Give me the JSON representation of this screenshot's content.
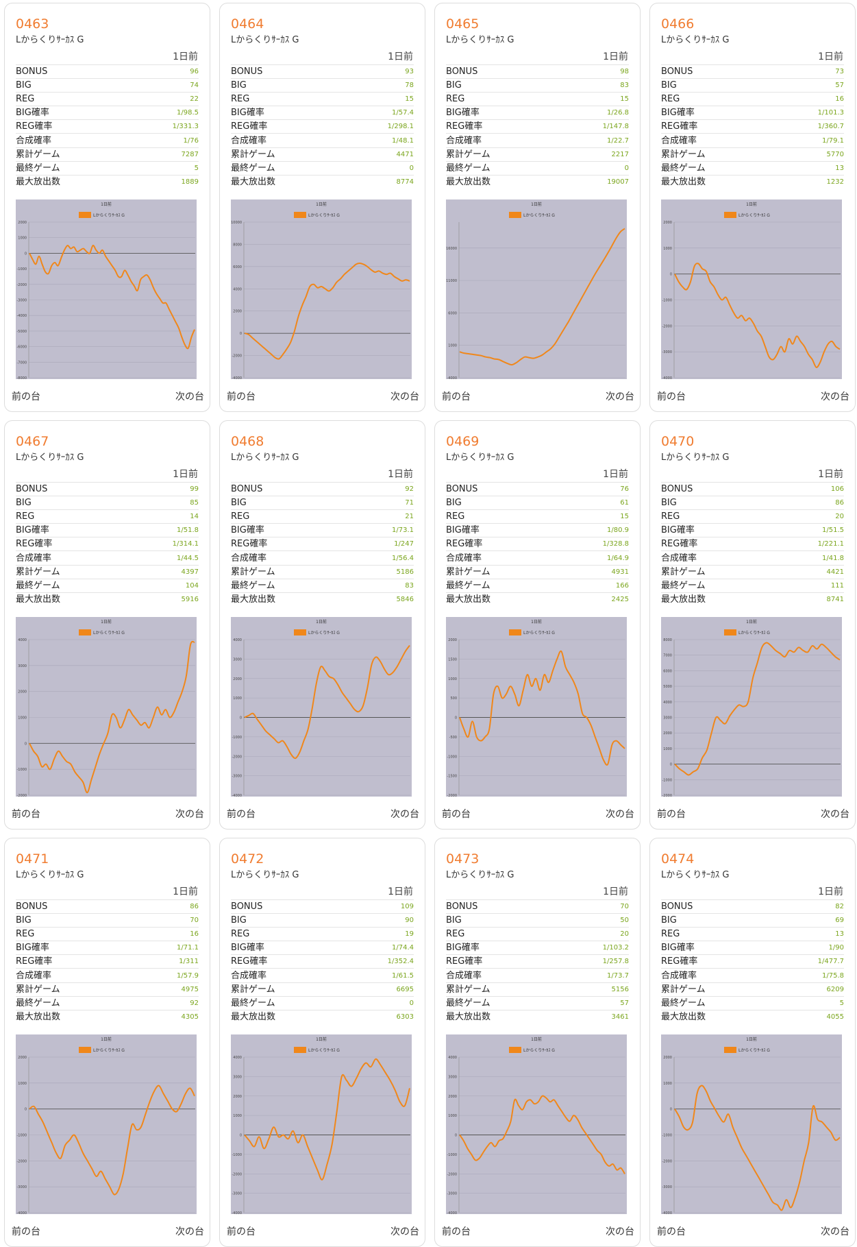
{
  "colors": {
    "accent": "#f07c30",
    "value": "#7aa51c",
    "chart_bg": "#c0bece",
    "line": "#f0871a"
  },
  "common": {
    "machine": "Lからくりｻｰｶｽ G",
    "day": "1日前",
    "prev": "前の台",
    "next": "次の台",
    "labels": [
      "BONUS",
      "BIG",
      "REG",
      "BIG確率",
      "REG確率",
      "合成確率",
      "累計ゲーム",
      "最終ゲーム",
      "最大放出数"
    ]
  },
  "cards": [
    {
      "number": "0463",
      "stats": [
        "96",
        "74",
        "22",
        "1/98.5",
        "1/331.3",
        "1/76",
        "7287",
        "5",
        "1889"
      ]
    },
    {
      "number": "0464",
      "stats": [
        "93",
        "78",
        "15",
        "1/57.4",
        "1/298.1",
        "1/48.1",
        "4471",
        "0",
        "8774"
      ]
    },
    {
      "number": "0465",
      "stats": [
        "98",
        "83",
        "15",
        "1/26.8",
        "1/147.8",
        "1/22.7",
        "2217",
        "0",
        "19007"
      ]
    },
    {
      "number": "0466",
      "stats": [
        "73",
        "57",
        "16",
        "1/101.3",
        "1/360.7",
        "1/79.1",
        "5770",
        "13",
        "1232"
      ]
    },
    {
      "number": "0467",
      "stats": [
        "99",
        "85",
        "14",
        "1/51.8",
        "1/314.1",
        "1/44.5",
        "4397",
        "104",
        "5916"
      ]
    },
    {
      "number": "0468",
      "stats": [
        "92",
        "71",
        "21",
        "1/73.1",
        "1/247",
        "1/56.4",
        "5186",
        "83",
        "5846"
      ]
    },
    {
      "number": "0469",
      "stats": [
        "76",
        "61",
        "15",
        "1/80.9",
        "1/328.8",
        "1/64.9",
        "4931",
        "166",
        "2425"
      ]
    },
    {
      "number": "0470",
      "stats": [
        "106",
        "86",
        "20",
        "1/51.5",
        "1/221.1",
        "1/41.8",
        "4421",
        "111",
        "8741"
      ]
    },
    {
      "number": "0471",
      "stats": [
        "86",
        "70",
        "16",
        "1/71.1",
        "1/311",
        "1/57.9",
        "4975",
        "92",
        "4305"
      ]
    },
    {
      "number": "0472",
      "stats": [
        "109",
        "90",
        "19",
        "1/74.4",
        "1/352.4",
        "1/61.5",
        "6695",
        "0",
        "6303"
      ]
    },
    {
      "number": "0473",
      "stats": [
        "70",
        "50",
        "20",
        "1/103.2",
        "1/257.8",
        "1/73.7",
        "5156",
        "57",
        "3461"
      ]
    },
    {
      "number": "0474",
      "stats": [
        "82",
        "69",
        "13",
        "1/90",
        "1/477.7",
        "1/75.8",
        "6209",
        "5",
        "4055"
      ]
    }
  ],
  "chart_data": [
    {
      "type": "line",
      "title": "1日前",
      "series_name": "Lからくりｻｰｶｽ G",
      "ylim": [
        -8000,
        2000
      ],
      "ytick_step": 1000,
      "y": [
        0,
        -400,
        -700,
        -200,
        -700,
        -1200,
        -1300,
        -800,
        -600,
        -800,
        -300,
        200,
        500,
        300,
        400,
        100,
        200,
        300,
        100,
        0,
        500,
        200,
        0,
        200,
        -200,
        -500,
        -800,
        -1100,
        -1500,
        -1500,
        -1100,
        -1400,
        -1800,
        -2100,
        -2400,
        -1700,
        -1500,
        -1400,
        -1700,
        -2200,
        -2600,
        -2900,
        -3200,
        -3200,
        -3600,
        -4000,
        -4400,
        -4800,
        -5400,
        -5900,
        -6100,
        -5400,
        -4900
      ]
    },
    {
      "type": "line",
      "title": "1日前",
      "series_name": "Lからくりｻｰｶｽ G",
      "ylim": [
        -4000,
        10000
      ],
      "ytick_step": 2000,
      "y": [
        0,
        -100,
        -400,
        -700,
        -1000,
        -1300,
        -1600,
        -1900,
        -2200,
        -2300,
        -1900,
        -1400,
        -800,
        200,
        1500,
        2500,
        3300,
        4200,
        4400,
        4100,
        4200,
        4000,
        3800,
        4100,
        4600,
        4900,
        5300,
        5600,
        5900,
        6200,
        6300,
        6200,
        6000,
        5700,
        5500,
        5600,
        5400,
        5300,
        5400,
        5100,
        4900,
        4700,
        4800,
        4700
      ]
    },
    {
      "type": "line",
      "title": "1日前",
      "series_name": "Lからくりｻｰｶｽ G",
      "ylim": [
        -4000,
        20000
      ],
      "ytick_step": 5000,
      "y": [
        0,
        -200,
        -300,
        -400,
        -500,
        -600,
        -800,
        -900,
        -1100,
        -1200,
        -1500,
        -1800,
        -2000,
        -1700,
        -1200,
        -800,
        -900,
        -1000,
        -800,
        -500,
        0,
        500,
        1300,
        2400,
        3500,
        4600,
        5800,
        7000,
        8200,
        9400,
        10600,
        11800,
        12900,
        14000,
        15100,
        16300,
        17500,
        18500,
        19000
      ]
    },
    {
      "type": "line",
      "title": "1日前",
      "series_name": "Lからくりｻｰｶｽ G",
      "ylim": [
        -4000,
        2000
      ],
      "ytick_step": 1000,
      "y": [
        0,
        -300,
        -500,
        -600,
        -300,
        300,
        400,
        200,
        100,
        -300,
        -500,
        -800,
        -1000,
        -900,
        -1200,
        -1500,
        -1700,
        -1600,
        -1800,
        -1700,
        -1900,
        -2200,
        -2400,
        -2800,
        -3200,
        -3300,
        -3100,
        -2800,
        -3000,
        -2500,
        -2700,
        -2400,
        -2600,
        -2800,
        -3100,
        -3300,
        -3600,
        -3400,
        -3000,
        -2700,
        -2600,
        -2800,
        -2900
      ]
    },
    {
      "type": "line",
      "title": "1日前",
      "series_name": "Lからくりｻｰｶｽ G",
      "ylim": [
        -2000,
        4000
      ],
      "ytick_step": 1000,
      "y": [
        0,
        -300,
        -500,
        -900,
        -800,
        -1000,
        -600,
        -300,
        -500,
        -700,
        -800,
        -1100,
        -1300,
        -1500,
        -1900,
        -1400,
        -900,
        -400,
        0,
        400,
        1100,
        1000,
        600,
        900,
        1300,
        1100,
        900,
        700,
        800,
        600,
        1000,
        1400,
        1100,
        1300,
        1000,
        1200,
        1600,
        2000,
        2600,
        3800,
        3900
      ]
    },
    {
      "type": "line",
      "title": "1日前",
      "series_name": "Lからくりｻｰｶｽ G",
      "ylim": [
        -4000,
        4000
      ],
      "ytick_step": 1000,
      "y": [
        0,
        100,
        200,
        -100,
        -400,
        -700,
        -900,
        -1100,
        -1300,
        -1200,
        -1500,
        -1900,
        -2100,
        -1800,
        -1200,
        -600,
        500,
        1800,
        2600,
        2400,
        2100,
        2000,
        1700,
        1300,
        1000,
        700,
        400,
        300,
        600,
        1500,
        2700,
        3100,
        2900,
        2500,
        2200,
        2300,
        2600,
        3000,
        3400,
        3700
      ]
    },
    {
      "type": "line",
      "title": "1日前",
      "series_name": "Lからくりｻｰｶｽ G",
      "ylim": [
        -2000,
        2000
      ],
      "ytick_step": 500,
      "y": [
        0,
        -300,
        -500,
        -100,
        -500,
        -600,
        -500,
        -300,
        600,
        800,
        500,
        600,
        800,
        600,
        300,
        700,
        1100,
        800,
        1000,
        700,
        1100,
        900,
        1200,
        1500,
        1700,
        1300,
        1100,
        900,
        600,
        100,
        0,
        -200,
        -500,
        -800,
        -1100,
        -1200,
        -700,
        -600,
        -700,
        -800
      ]
    },
    {
      "type": "line",
      "title": "1日前",
      "series_name": "Lからくりｻｰｶｽ G",
      "ylim": [
        -2000,
        8000
      ],
      "ytick_step": 1000,
      "y": [
        0,
        -300,
        -500,
        -700,
        -500,
        -300,
        400,
        900,
        2000,
        3000,
        2800,
        2600,
        3100,
        3500,
        3800,
        3700,
        4000,
        5500,
        6500,
        7500,
        7800,
        7600,
        7300,
        7100,
        6900,
        7300,
        7200,
        7500,
        7300,
        7200,
        7600,
        7400,
        7700,
        7500,
        7200,
        6900,
        6700
      ]
    },
    {
      "type": "line",
      "title": "1日前",
      "series_name": "Lからくりｻｰｶｽ G",
      "ylim": [
        -4000,
        2000
      ],
      "ytick_step": 1000,
      "y": [
        0,
        100,
        -200,
        -500,
        -900,
        -1300,
        -1700,
        -1900,
        -1400,
        -1200,
        -1000,
        -1300,
        -1700,
        -2000,
        -2300,
        -2600,
        -2400,
        -2700,
        -3000,
        -3300,
        -3100,
        -2500,
        -1500,
        -600,
        -800,
        -700,
        -200,
        300,
        700,
        900,
        600,
        300,
        0,
        -100,
        200,
        600,
        800,
        500
      ]
    },
    {
      "type": "line",
      "title": "1日前",
      "series_name": "Lからくりｻｰｶｽ G",
      "ylim": [
        -4000,
        4000
      ],
      "ytick_step": 1000,
      "y": [
        0,
        -300,
        -600,
        -100,
        -700,
        -200,
        400,
        -100,
        0,
        -200,
        200,
        -400,
        0,
        -600,
        -1200,
        -1800,
        -2300,
        -1500,
        -500,
        1200,
        3000,
        2800,
        2500,
        2900,
        3400,
        3700,
        3500,
        3900,
        3600,
        3200,
        2800,
        2300,
        1700,
        1500,
        2400
      ]
    },
    {
      "type": "line",
      "title": "1日前",
      "series_name": "Lからくりｻｰｶｽ G",
      "ylim": [
        -4000,
        4000
      ],
      "ytick_step": 1000,
      "y": [
        0,
        -300,
        -700,
        -1000,
        -1300,
        -1200,
        -900,
        -600,
        -400,
        -600,
        -300,
        -200,
        200,
        700,
        1800,
        1500,
        1300,
        1700,
        1800,
        1600,
        1700,
        2000,
        1900,
        1700,
        1800,
        1500,
        1200,
        900,
        700,
        1000,
        800,
        400,
        100,
        -200,
        -500,
        -800,
        -1000,
        -1400,
        -1600,
        -1500,
        -1800,
        -1700,
        -2000
      ]
    },
    {
      "type": "line",
      "title": "1日前",
      "series_name": "Lからくりｻｰｶｽ G",
      "ylim": [
        -4000,
        2000
      ],
      "ytick_step": 1000,
      "y": [
        0,
        -300,
        -700,
        -800,
        -500,
        600,
        900,
        700,
        300,
        0,
        -300,
        -500,
        -200,
        -700,
        -1100,
        -1500,
        -1800,
        -2100,
        -2400,
        -2700,
        -3000,
        -3300,
        -3600,
        -3700,
        -3900,
        -3500,
        -3800,
        -3400,
        -2800,
        -2000,
        -1300,
        100,
        -400,
        -500,
        -700,
        -900,
        -1200,
        -1100
      ]
    }
  ]
}
